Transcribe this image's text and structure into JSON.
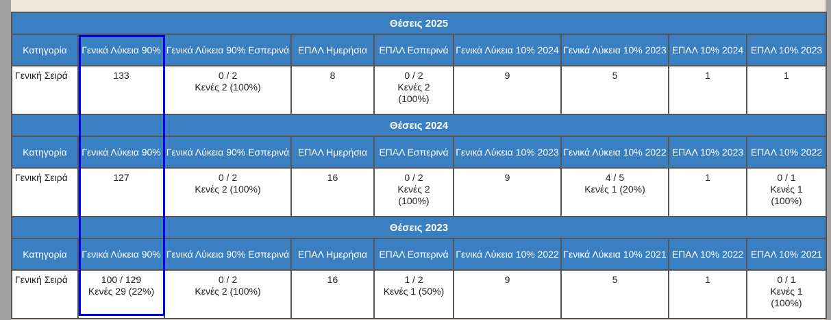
{
  "sections": [
    {
      "title": "Θέσεις 2025",
      "headers": [
        "Κατηγορία",
        "Γενικά Λύκεια 90%",
        "Γενικά Λύκεια 90% Εσπερινά",
        "ΕΠΑΛ Ημερήσια",
        "ΕΠΑΛ Εσπερινά",
        "Γενικά Λύκεια 10% 2024",
        "Γενικά Λύκεια 10% 2023",
        "ΕΠΑΛ 10% 2024",
        "ΕΠΑΛ 10% 2023"
      ],
      "row": [
        "Γενική Σειρά",
        "133",
        "0 / 2\nΚενές 2 (100%)",
        "8",
        "0 / 2\nΚενές 2\n(100%)",
        "9",
        "5",
        "1",
        "1"
      ]
    },
    {
      "title": "Θέσεις 2024",
      "headers": [
        "Κατηγορία",
        "Γενικά Λύκεια 90%",
        "Γενικά Λύκεια 90% Εσπερινά",
        "ΕΠΑΛ Ημερήσια",
        "ΕΠΑΛ Εσπερινά",
        "Γενικά Λύκεια 10% 2023",
        "Γενικά Λύκεια 10% 2022",
        "ΕΠΑΛ 10% 2023",
        "ΕΠΑΛ 10% 2022"
      ],
      "row": [
        "Γενική Σειρά",
        "127",
        "0 / 2\nΚενές 2 (100%)",
        "16",
        "0 / 2\nΚενές 2\n(100%)",
        "9",
        "4 / 5\nΚενές 1 (20%)",
        "1",
        "0 / 1\nΚενές 1\n(100%)"
      ]
    },
    {
      "title": "Θέσεις 2023",
      "headers": [
        "Κατηγορία",
        "Γενικά Λύκεια 90%",
        "Γενικά Λύκεια 90% Εσπερινά",
        "ΕΠΑΛ Ημερήσια",
        "ΕΠΑΛ Εσπερινά",
        "Γενικά Λύκεια 10% 2022",
        "Γενικά Λύκεια 10% 2021",
        "ΕΠΑΛ 10% 2022",
        "ΕΠΑΛ 10% 2021"
      ],
      "row": [
        "Γενική Σειρά",
        "100 / 129\nΚενές 29 (22%)",
        "0 / 2\nΚενές 2 (100%)",
        "16",
        "1 / 2\nΚενές 1 (50%)",
        "9",
        "5",
        "1",
        "0 / 1\nΚενές 1\n(100%)"
      ]
    }
  ],
  "colors": {
    "header": "#3a7fc1",
    "highlight": "#0000e6"
  }
}
